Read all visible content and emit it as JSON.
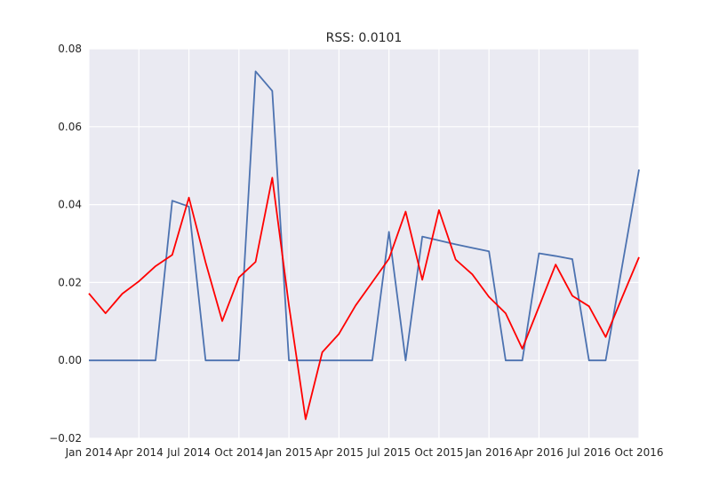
{
  "chart_data": {
    "type": "line",
    "title": "RSS: 0.0101",
    "xlabel": "",
    "ylabel": "",
    "ylim": [
      -0.02,
      0.08
    ],
    "xlim": [
      "2014-01",
      "2016-10"
    ],
    "grid": true,
    "x_ticks": [
      "Jan 2014",
      "Apr 2014",
      "Jul 2014",
      "Oct 2014",
      "Jan 2015",
      "Apr 2015",
      "Jul 2015",
      "Oct 2015",
      "Jan 2016",
      "Apr 2016",
      "Jul 2016",
      "Oct 2016"
    ],
    "y_ticks": [
      "-0.02",
      "0.00",
      "0.02",
      "0.04",
      "0.06",
      "0.08"
    ],
    "x": [
      "2014-01",
      "2014-02",
      "2014-03",
      "2014-04",
      "2014-05",
      "2014-06",
      "2014-07",
      "2014-08",
      "2014-09",
      "2014-10",
      "2014-11",
      "2014-12",
      "2015-01",
      "2015-02",
      "2015-03",
      "2015-04",
      "2015-05",
      "2015-06",
      "2015-07",
      "2015-08",
      "2015-09",
      "2015-10",
      "2015-11",
      "2015-12",
      "2016-01",
      "2016-02",
      "2016-03",
      "2016-04",
      "2016-05",
      "2016-06",
      "2016-07",
      "2016-08",
      "2016-09",
      "2016-10"
    ],
    "series": [
      {
        "color": "#4c72b0",
        "values": [
          0.0,
          0.0,
          0.0,
          0.0,
          0.0,
          0.041,
          0.0395,
          0.0,
          0.0,
          0.0,
          0.0742,
          0.0692,
          0.0,
          0.0,
          0.0,
          0.0,
          0.0,
          0.0,
          0.033,
          0.0,
          0.0318,
          0.0308,
          0.0298,
          0.0289,
          0.028,
          0.0,
          0.0,
          0.0275,
          0.0268,
          0.026,
          0.0,
          0.0,
          0.0245,
          0.049
        ]
      },
      {
        "color": "#ff0000",
        "values": [
          0.0172,
          0.0121,
          0.0171,
          0.0203,
          0.0242,
          0.0271,
          0.0418,
          0.0252,
          0.0101,
          0.0213,
          0.0253,
          0.0469,
          0.0141,
          -0.0151,
          0.0021,
          0.0068,
          0.0141,
          0.0201,
          0.0261,
          0.0382,
          0.0207,
          0.0386,
          0.0259,
          0.0221,
          0.0163,
          0.0121,
          0.003,
          0.0138,
          0.0246,
          0.0166,
          0.0139,
          0.006,
          0.0163,
          0.0265
        ]
      }
    ]
  }
}
